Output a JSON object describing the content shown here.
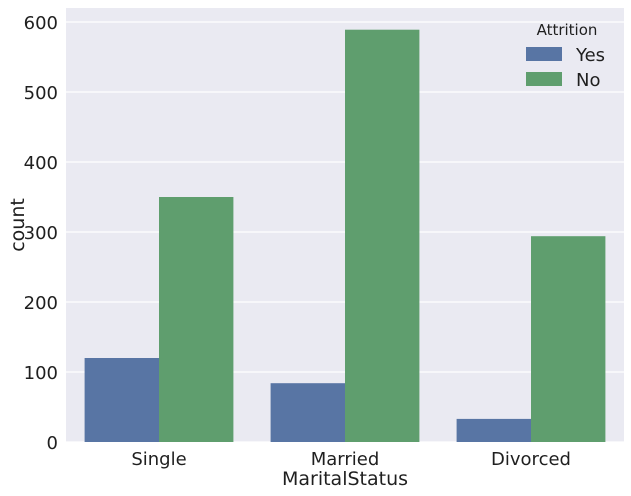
{
  "chart_data": {
    "type": "bar",
    "title": "",
    "xlabel": "MaritalStatus",
    "ylabel": "count",
    "categories": [
      "Single",
      "Married",
      "Divorced"
    ],
    "series": [
      {
        "name": "Yes",
        "values": [
          120,
          84,
          33
        ],
        "color": "#5875a4"
      },
      {
        "name": "No",
        "values": [
          350,
          589,
          294
        ],
        "color": "#5f9e6e"
      }
    ],
    "ylim": [
      0,
      620
    ],
    "yticks": [
      0,
      100,
      200,
      300,
      400,
      500,
      600
    ],
    "legend": {
      "title": "Attrition",
      "placement": "top-right"
    },
    "grid": true,
    "background": "#eaeaf2",
    "grid_color": "#ffffff"
  }
}
